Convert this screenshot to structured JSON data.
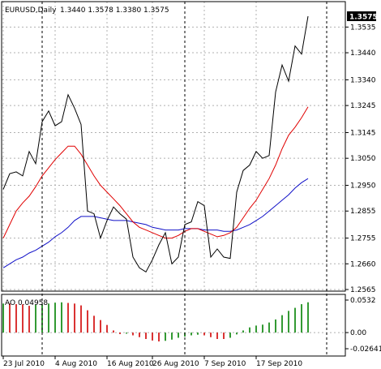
{
  "window": {
    "symbol_label": "EURUSD,Daily",
    "ohlc_label": "1.3440 1.3578 1.3380 1.3575",
    "last_price_label": "1.3575"
  },
  "colors": {
    "background": "#ffffff",
    "price_line": "#000000",
    "ma_fast": "#e00000",
    "ma_slow": "#1010c8",
    "ao_up": "#008000",
    "ao_down": "#d00000",
    "grid": "#b0b0b0"
  },
  "chart_data": [
    {
      "type": "line",
      "title": "EURUSD,Daily",
      "ylim": [
        1.2565,
        1.3575
      ],
      "y_ticks": [
        "1.3535",
        "1.3440",
        "1.3340",
        "1.3245",
        "1.3145",
        "1.3050",
        "1.2950",
        "1.2855",
        "1.2755",
        "1.2660",
        "1.2565"
      ],
      "y_tick_values": [
        1.3535,
        1.344,
        1.334,
        1.3245,
        1.3145,
        1.305,
        1.295,
        1.2855,
        1.2755,
        1.266,
        1.2565
      ],
      "x_ticks": [
        "23 Jul 2010",
        "4 Aug 2010",
        "16 Aug 2010",
        "26 Aug 2010",
        "7 Sep 2010",
        "17 Sep 2010"
      ],
      "x_tick_bar_index": [
        0,
        8,
        16,
        23,
        31,
        39
      ],
      "grid": true,
      "series": [
        {
          "name": "price",
          "values": [
            1.2935,
            1.2993,
            1.3,
            1.2985,
            1.3075,
            1.303,
            1.3185,
            1.3225,
            1.317,
            1.3185,
            1.3285,
            1.3235,
            1.3175,
            1.2855,
            1.2845,
            1.2755,
            1.282,
            1.287,
            1.2845,
            1.2825,
            1.2685,
            1.2645,
            1.263,
            1.2675,
            1.273,
            1.2775,
            1.266,
            1.2685,
            1.2805,
            1.2815,
            1.289,
            1.2875,
            1.2685,
            1.2715,
            1.2685,
            1.268,
            1.2925,
            1.3005,
            1.3025,
            1.3075,
            1.305,
            1.306,
            1.3295,
            1.3395,
            1.3335,
            1.3465,
            1.3435,
            1.3575
          ]
        },
        {
          "name": "ma_fast",
          "values": [
            1.2755,
            1.2805,
            1.2855,
            1.2885,
            1.291,
            1.2945,
            1.2985,
            1.3015,
            1.3045,
            1.307,
            1.3095,
            1.3095,
            1.3065,
            1.3025,
            1.2985,
            1.295,
            1.2925,
            1.29,
            1.2875,
            1.2845,
            1.2815,
            1.2795,
            1.2785,
            1.2775,
            1.2765,
            1.2755,
            1.2755,
            1.2765,
            1.278,
            1.279,
            1.279,
            1.278,
            1.277,
            1.276,
            1.2765,
            1.2775,
            1.2795,
            1.283,
            1.2865,
            1.2895,
            1.2935,
            1.2975,
            1.3025,
            1.3085,
            1.3135,
            1.3165,
            1.32,
            1.324
          ]
        },
        {
          "name": "ma_slow",
          "values": [
            1.2645,
            1.266,
            1.2675,
            1.2685,
            1.27,
            1.271,
            1.2725,
            1.274,
            1.276,
            1.2775,
            1.2795,
            1.282,
            1.2835,
            1.2835,
            1.2835,
            1.283,
            1.2825,
            1.282,
            1.282,
            1.282,
            1.2815,
            1.281,
            1.2805,
            1.2795,
            1.279,
            1.2785,
            1.2785,
            1.2785,
            1.279,
            1.279,
            1.279,
            1.2785,
            1.2785,
            1.2785,
            1.278,
            1.278,
            1.2785,
            1.2795,
            1.2805,
            1.282,
            1.2835,
            1.2855,
            1.2875,
            1.2895,
            1.2915,
            1.294,
            1.296,
            1.2975
          ]
        }
      ]
    },
    {
      "type": "bar",
      "title": "AO 0.04958",
      "ylim": [
        -0.02641,
        0.0532
      ],
      "y_ticks": [
        "0.0532",
        "0.00",
        "-0.02641"
      ],
      "y_tick_values": [
        0.0532,
        0.0,
        -0.02641
      ],
      "series": [
        {
          "name": "AO",
          "values": [
            0.0475,
            0.0475,
            0.0465,
            0.0462,
            0.0438,
            0.0455,
            0.0465,
            0.0475,
            0.049,
            0.0495,
            0.0485,
            0.0475,
            0.0445,
            0.0365,
            0.0275,
            0.0205,
            0.0125,
            0.0035,
            -0.0025,
            -0.0018,
            -0.0045,
            -0.0075,
            -0.0105,
            -0.013,
            -0.0145,
            -0.0135,
            -0.0115,
            -0.0085,
            -0.0065,
            -0.0045,
            -0.0035,
            -0.0045,
            -0.0075,
            -0.0105,
            -0.0105,
            -0.0085,
            -0.003,
            0.0035,
            0.0085,
            0.0115,
            0.013,
            0.0165,
            0.0215,
            0.0285,
            0.0355,
            0.0405,
            0.0465,
            0.04958
          ]
        }
      ]
    }
  ]
}
